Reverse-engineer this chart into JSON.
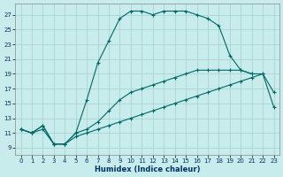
{
  "xlabel": "Humidex (Indice chaleur)",
  "background_color": "#c8ecec",
  "grid_color": "#aad4d4",
  "line_color": "#006868",
  "xlim": [
    -0.5,
    23.5
  ],
  "ylim": [
    8.0,
    28.5
  ],
  "xticks": [
    0,
    1,
    2,
    3,
    4,
    5,
    6,
    7,
    8,
    9,
    10,
    11,
    12,
    13,
    14,
    15,
    16,
    17,
    18,
    19,
    20,
    21,
    22,
    23
  ],
  "yticks": [
    9,
    11,
    13,
    15,
    17,
    19,
    21,
    23,
    25,
    27
  ],
  "line2_x": [
    0,
    1,
    2,
    3,
    4,
    5,
    6,
    7,
    8,
    9,
    10,
    11,
    12,
    13,
    14,
    15,
    16,
    17,
    18,
    19,
    20,
    21
  ],
  "line2_y": [
    11.5,
    11.0,
    12.0,
    9.5,
    9.5,
    11.0,
    15.5,
    20.5,
    23.5,
    26.5,
    27.5,
    27.5,
    27.0,
    27.5,
    27.5,
    27.5,
    27.0,
    26.5,
    25.5,
    21.5,
    19.5,
    19.0
  ],
  "line3_x": [
    0,
    1,
    2,
    3,
    4,
    5,
    6,
    7,
    8,
    9,
    10,
    11,
    12,
    13,
    14,
    15,
    16,
    17,
    18,
    19,
    20,
    21,
    22,
    23
  ],
  "line3_y": [
    11.5,
    11.0,
    12.0,
    9.5,
    9.5,
    11.0,
    11.5,
    12.5,
    14.0,
    15.5,
    16.5,
    17.0,
    17.5,
    18.0,
    18.5,
    19.0,
    19.5,
    19.5,
    19.5,
    19.5,
    19.5,
    19.0,
    19.0,
    16.5
  ],
  "line1_x": [
    0,
    1,
    2,
    3,
    4,
    5,
    6,
    7,
    8,
    9,
    10,
    11,
    12,
    13,
    14,
    15,
    16,
    17,
    18,
    19,
    20,
    21,
    22,
    23
  ],
  "line1_y": [
    11.5,
    11.0,
    11.5,
    9.5,
    9.5,
    10.5,
    11.0,
    11.5,
    12.0,
    12.5,
    13.0,
    13.5,
    14.0,
    14.5,
    15.0,
    15.5,
    16.0,
    16.5,
    17.0,
    17.5,
    18.0,
    18.5,
    19.0,
    14.5
  ]
}
